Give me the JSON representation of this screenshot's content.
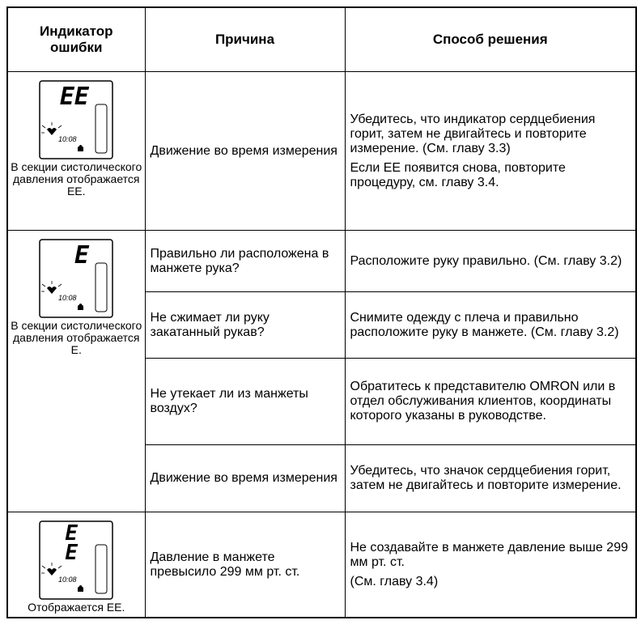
{
  "table": {
    "header": [
      "Индикатор ошибки",
      "Причина",
      "Способ решения"
    ],
    "groups": [
      {
        "display": [
          "EE"
        ],
        "time": "10:08",
        "caption": "В секции систолического давления отображается EE.",
        "rows": [
          {
            "cause": "Движение во время измерения",
            "solution": [
              "Убедитесь, что индикатор сердцебиения горит, затем не двигайтесь и повторите измерение. (См. главу 3.3)",
              "Если EE появится снова, повторите процедуру, см. главу 3.4."
            ]
          }
        ]
      },
      {
        "display": [
          "E"
        ],
        "time": "10:08",
        "caption": "В секции систолического давления отображается E.",
        "rows": [
          {
            "cause": "Правильно ли расположена в манжете рука?",
            "solution": [
              "Расположите руку правильно. (См. главу 3.2)"
            ]
          },
          {
            "cause": "Не сжимает ли руку закатанный рукав?",
            "solution": [
              "Снимите одежду с плеча и правильно расположите руку в манжете. (См. главу 3.2)"
            ]
          },
          {
            "cause": "Не утекает ли из манжеты воздух?",
            "solution": [
              "Обратитесь к представителю OMRON или в отдел обслуживания клиентов, координаты которого указаны в руководстве."
            ]
          },
          {
            "cause": "Движение во время измерения",
            "solution": [
              "Убедитесь, что значок сердцебиения горит, затем не двигайтесь и повторите измерение."
            ]
          }
        ]
      },
      {
        "display": [
          "E",
          "E"
        ],
        "time": "10:08",
        "caption": "Отображается EE.",
        "rows": [
          {
            "cause": "Давление в манжете превысило 299 мм рт. ст.",
            "solution": [
              "Не создавайте в манжете давление выше 299 мм рт. ст.",
              "(См. главу 3.4)"
            ]
          }
        ]
      }
    ]
  }
}
